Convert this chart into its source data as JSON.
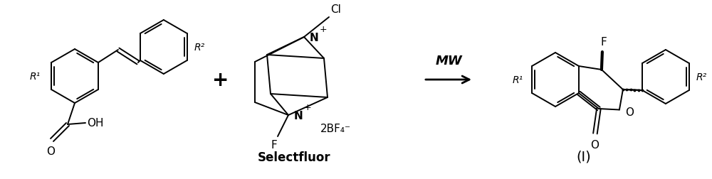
{
  "background_color": "#ffffff",
  "figure_width": 10.0,
  "figure_height": 2.53,
  "dpi": 100,
  "line_color": "#000000",
  "text_color": "#000000",
  "plus_text": "+",
  "arrow_label": "MW",
  "reagent_label": "Selectfluor",
  "bf4_label": "2BF₄⁻",
  "compound_label": "(Ⅰ)",
  "oh_label": "OH",
  "o_label": "O",
  "f_label": "F",
  "cl_label": "Cl",
  "n_label": "N",
  "r1_label": "R¹",
  "r2_label": "R²",
  "plus_charge": "+",
  "lw": 1.4
}
